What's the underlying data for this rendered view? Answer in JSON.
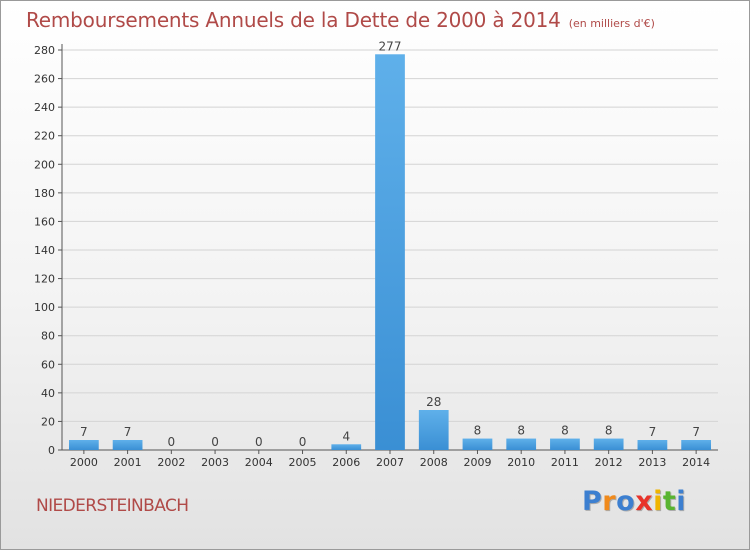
{
  "chart_data": {
    "type": "bar",
    "title": "Remboursements Annuels de la Dette de 2000 à 2014",
    "subtitle": "(en milliers d'€)",
    "categories": [
      "2000",
      "2001",
      "2002",
      "2003",
      "2004",
      "2005",
      "2006",
      "2007",
      "2008",
      "2009",
      "2010",
      "2011",
      "2012",
      "2013",
      "2014"
    ],
    "values": [
      7,
      7,
      0,
      0,
      0,
      0,
      4,
      277,
      28,
      8,
      8,
      8,
      8,
      7,
      7
    ],
    "ylim": [
      0,
      280
    ],
    "yticks": [
      0,
      20,
      40,
      60,
      80,
      100,
      120,
      140,
      160,
      180,
      200,
      220,
      240,
      260,
      280
    ],
    "grid": true,
    "bar_color": "#3a8fd4",
    "bar_color_light": "#5fb0ea",
    "title_color": "#b04a48"
  },
  "place_name": "NIEDERSTEINBACH",
  "logo": {
    "letters": [
      "P",
      "r",
      "o",
      "x",
      "i",
      "t",
      "i"
    ],
    "colors": [
      "#3c7fd0",
      "#f08a1c",
      "#3c7fd0",
      "#e8332a",
      "#f0b400",
      "#59b431",
      "#3c7fd0"
    ]
  }
}
